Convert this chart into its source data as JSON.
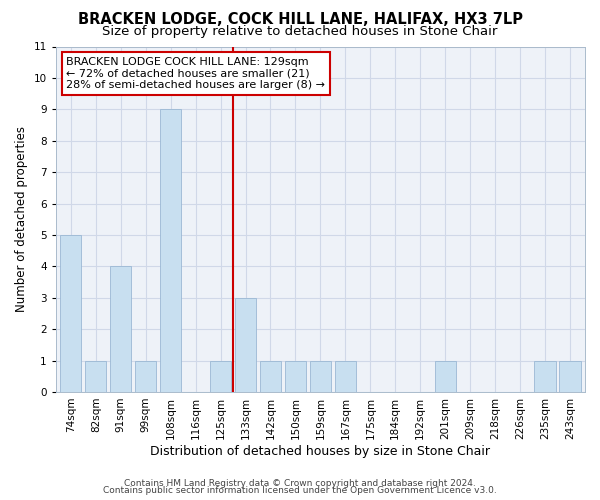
{
  "title": "BRACKEN LODGE, COCK HILL LANE, HALIFAX, HX3 7LP",
  "subtitle": "Size of property relative to detached houses in Stone Chair",
  "xlabel": "Distribution of detached houses by size in Stone Chair",
  "ylabel": "Number of detached properties",
  "bar_labels": [
    "74sqm",
    "82sqm",
    "91sqm",
    "99sqm",
    "108sqm",
    "116sqm",
    "125sqm",
    "133sqm",
    "142sqm",
    "150sqm",
    "159sqm",
    "167sqm",
    "175sqm",
    "184sqm",
    "192sqm",
    "201sqm",
    "209sqm",
    "218sqm",
    "226sqm",
    "235sqm",
    "243sqm"
  ],
  "bar_values": [
    5,
    1,
    4,
    1,
    9,
    0,
    1,
    3,
    1,
    1,
    1,
    1,
    0,
    0,
    0,
    1,
    0,
    0,
    0,
    1,
    1
  ],
  "ylim": [
    0,
    11
  ],
  "bar_color": "#c8dff0",
  "bar_edge_color": "#9bb8d4",
  "vline_color": "#cc0000",
  "vline_x_index": 6.5,
  "annotation_text": "BRACKEN LODGE COCK HILL LANE: 129sqm\n← 72% of detached houses are smaller (21)\n28% of semi-detached houses are larger (8) →",
  "annotation_box_facecolor": "#ffffff",
  "annotation_box_edgecolor": "#cc0000",
  "footer1": "Contains HM Land Registry data © Crown copyright and database right 2024.",
  "footer2": "Contains public sector information licensed under the Open Government Licence v3.0.",
  "title_fontsize": 10.5,
  "subtitle_fontsize": 9.5,
  "xlabel_fontsize": 9,
  "ylabel_fontsize": 8.5,
  "tick_fontsize": 7.5,
  "annotation_fontsize": 8,
  "footer_fontsize": 6.5,
  "grid_color": "#d0d8e8",
  "background_color": "#eef2f8"
}
